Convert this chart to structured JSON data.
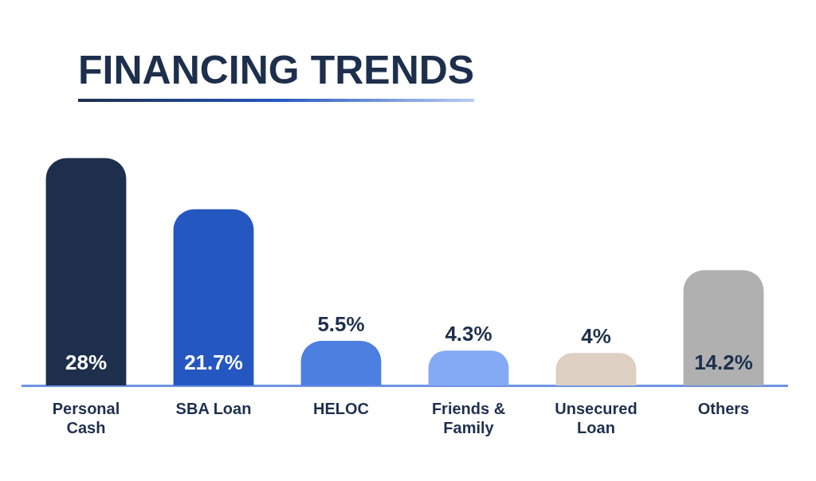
{
  "chart_data": {
    "type": "bar",
    "title": "FINANCING TRENDS",
    "categories": [
      "Personal Cash",
      "SBA Loan",
      "HELOC",
      "Friends & Family",
      "Unsecured Loan",
      "Others"
    ],
    "values": [
      28,
      21.7,
      5.5,
      4.3,
      4,
      14.2
    ],
    "value_labels": [
      "28%",
      "21.7%",
      "5.5%",
      "4.3%",
      "4%",
      "14.2%"
    ],
    "colors": [
      "#1e2f4d",
      "#2557c0",
      "#4d7fe0",
      "#85aaf5",
      "#ddd0c2",
      "#b0b0b0"
    ],
    "grid": false,
    "legend": false,
    "tick_labels": "x"
  }
}
